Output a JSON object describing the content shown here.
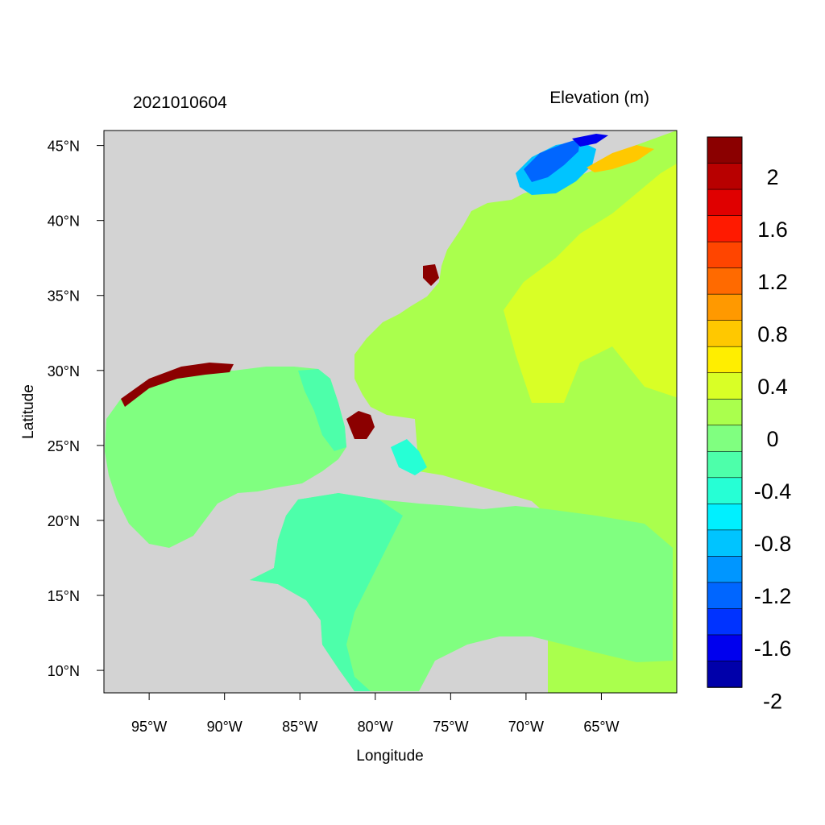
{
  "header": {
    "left_title": "2021010604",
    "right_title": "Elevation (m)"
  },
  "axes": {
    "xlabel": "Longitude",
    "ylabel": "Latitude",
    "lon_range": [
      -98,
      -60
    ],
    "lat_range": [
      8.5,
      46
    ],
    "x_ticks": [
      {
        "value": -95,
        "label": "95°W"
      },
      {
        "value": -90,
        "label": "90°W"
      },
      {
        "value": -85,
        "label": "85°W"
      },
      {
        "value": -80,
        "label": "80°W"
      },
      {
        "value": -75,
        "label": "75°W"
      },
      {
        "value": -70,
        "label": "70°W"
      },
      {
        "value": -65,
        "label": "65°W"
      }
    ],
    "y_ticks": [
      {
        "value": 45,
        "label": "45°N"
      },
      {
        "value": 40,
        "label": "40°N"
      },
      {
        "value": 35,
        "label": "35°N"
      },
      {
        "value": 30,
        "label": "30°N"
      },
      {
        "value": 25,
        "label": "25°N"
      },
      {
        "value": 20,
        "label": "20°N"
      },
      {
        "value": 15,
        "label": "15°N"
      },
      {
        "value": 10,
        "label": "10°N"
      }
    ]
  },
  "colorbar": {
    "colors": [
      "#8b0000",
      "#b80000",
      "#e00000",
      "#ff1a00",
      "#ff4500",
      "#ff6a00",
      "#ff9900",
      "#ffc800",
      "#ffee00",
      "#d9ff26",
      "#aaff4d",
      "#80ff80",
      "#4dffaa",
      "#26ffd5",
      "#00f0ff",
      "#00c4ff",
      "#0096ff",
      "#0066ff",
      "#0033ff",
      "#0000ee",
      "#0000aa"
    ],
    "labels": [
      {
        "position": 1.5,
        "label": "2"
      },
      {
        "position": 3.5,
        "label": "1.6"
      },
      {
        "position": 5.5,
        "label": "1.2"
      },
      {
        "position": 7.5,
        "label": "0.8"
      },
      {
        "position": 9.5,
        "label": "0.4"
      },
      {
        "position": 11.5,
        "label": "0"
      },
      {
        "position": 13.5,
        "label": "-0.4"
      },
      {
        "position": 15.5,
        "label": "-0.8"
      },
      {
        "position": 17.5,
        "label": "-1.2"
      },
      {
        "position": 19.5,
        "label": "-1.6"
      },
      {
        "position": 21.5,
        "label": "-2"
      }
    ]
  },
  "map_colors": {
    "land": "#d3d3d3",
    "water_line": "#ffffff",
    "frame": "#000000"
  }
}
